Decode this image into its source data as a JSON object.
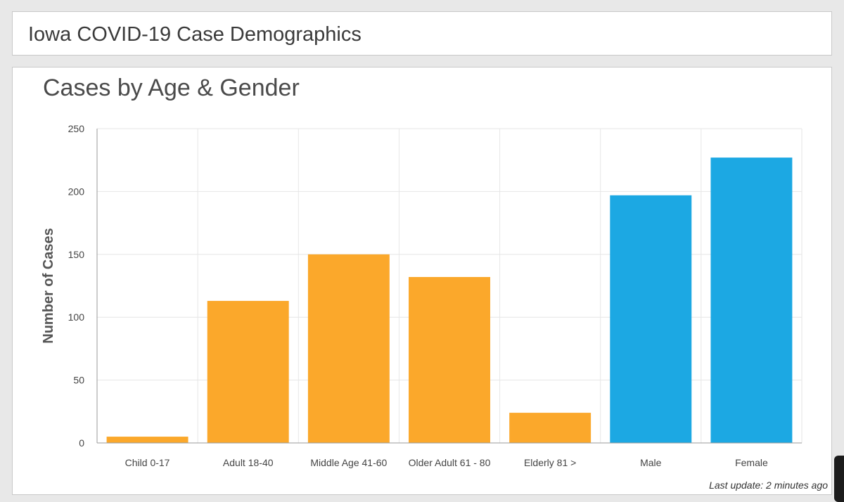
{
  "header": {
    "title": "Iowa COVID-19 Case Demographics"
  },
  "footer": {
    "last_update": "Last update: 2 minutes ago"
  },
  "colors": {
    "age_bar": "#fba82b",
    "gender_bar": "#1ca8e3",
    "grid": "#e6e6e6",
    "axis": "#9a9a9a",
    "tick_text": "#444444",
    "ylabel_text": "#555555"
  },
  "chart_data": {
    "type": "bar",
    "title": "Cases by Age & Gender",
    "xlabel": "",
    "ylabel": "Number of Cases",
    "ylim": [
      0,
      250
    ],
    "yticks": [
      0,
      50,
      100,
      150,
      200,
      250
    ],
    "grid": true,
    "categories": [
      "Child 0-17",
      "Adult 18-40",
      "Middle Age 41-60",
      "Older Adult 61 - 80",
      "Elderly 81 >",
      "Male",
      "Female"
    ],
    "values": [
      5,
      113,
      150,
      132,
      24,
      197,
      227
    ],
    "groups": [
      "age",
      "age",
      "age",
      "age",
      "age",
      "gender",
      "gender"
    ]
  }
}
